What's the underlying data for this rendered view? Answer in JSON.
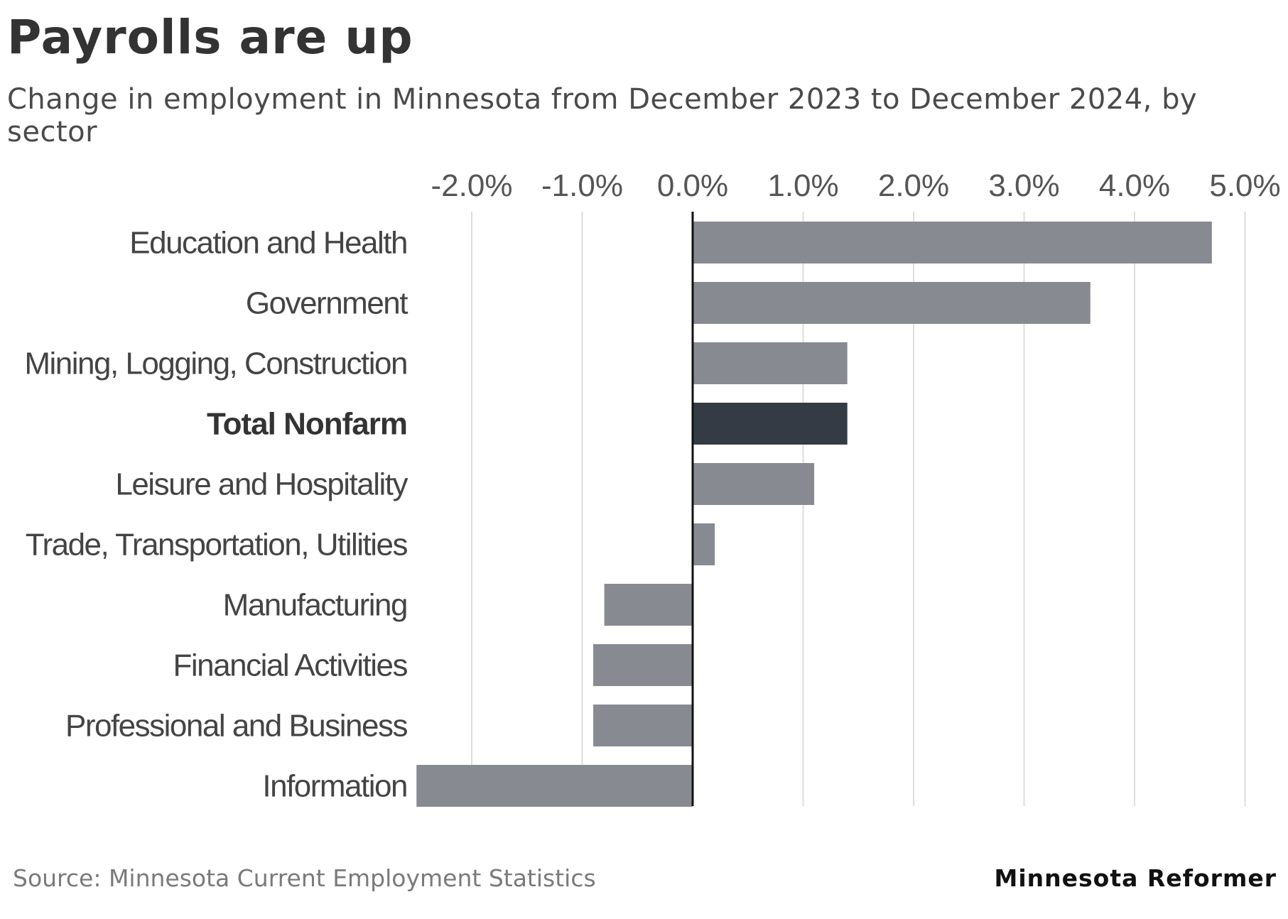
{
  "header": {
    "title": "Payrolls are up",
    "subtitle": "Change in employment in Minnesota from December 2023 to December 2024, by sector"
  },
  "footer": {
    "source": "Source: Minnesota Current Employment Statistics",
    "brand": "Minnesota Reformer"
  },
  "colors": {
    "bar": "#878a91",
    "highlight_bar": "#343b44",
    "grid": "#dddddd",
    "zero_line": "#111111"
  },
  "chart_data": {
    "type": "bar",
    "orientation": "horizontal",
    "title": "Payrolls are up",
    "subtitle": "Change in employment in Minnesota from December 2023 to December 2024, by sector",
    "xlabel": "",
    "ylabel": "",
    "xlim": [
      -2.5,
      5.0
    ],
    "ticks": [
      -2,
      -1,
      0,
      1,
      2,
      3,
      4,
      5
    ],
    "tick_labels": [
      "-2.0%",
      "-1.0%",
      "0.0%",
      "1.0%",
      "2.0%",
      "3.0%",
      "4.0%",
      "5.0%"
    ],
    "grid": true,
    "axis_position": "top",
    "categories": [
      "Education and Health",
      "Government",
      "Mining, Logging, Construction",
      "Total Nonfarm",
      "Leisure and Hospitality",
      "Trade, Transportation, Utilities",
      "Manufacturing",
      "Financial Activities",
      "Professional and Business",
      "Information"
    ],
    "values": [
      4.7,
      3.6,
      1.4,
      1.4,
      1.1,
      0.2,
      -0.8,
      -0.9,
      -0.9,
      -2.5
    ],
    "highlight": [
      "Total Nonfarm"
    ]
  }
}
